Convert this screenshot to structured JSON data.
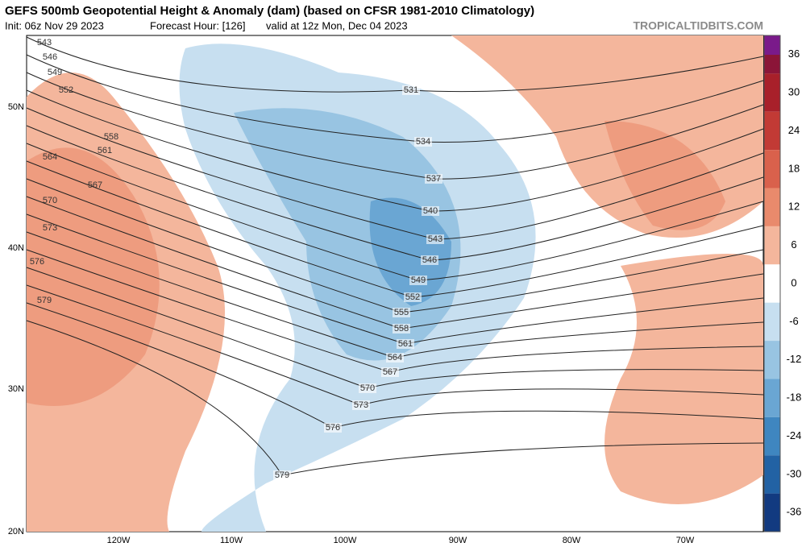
{
  "header": {
    "title": "GEFS 500mb Geopotential Height & Anomaly (dam) (based on CFSR 1981-2010 Climatology)",
    "init": "Init: 06z Nov 29 2023",
    "forecast_hour": "Forecast Hour: [126]",
    "valid": "valid at 12z Mon, Dec 04 2023",
    "source": "TROPICALTIDBITS.COM"
  },
  "map": {
    "lat_labels": [
      "50N",
      "40N",
      "30N",
      "20N"
    ],
    "lon_labels": [
      "120W",
      "110W",
      "100W",
      "90W",
      "80W",
      "70W"
    ],
    "west_contour_labels": [
      543,
      546,
      549,
      552,
      558,
      561,
      564,
      567,
      570,
      573,
      576,
      579
    ],
    "central_contour_labels": [
      531,
      534,
      537,
      540,
      543,
      546,
      549,
      552,
      555,
      558,
      561,
      564,
      567,
      570,
      573,
      576,
      579
    ]
  },
  "colorbar": {
    "ticks": [
      36,
      30,
      24,
      18,
      12,
      6,
      0,
      -6,
      -12,
      -18,
      -24,
      -30,
      -36
    ],
    "colors": [
      "#8b1538",
      "#a8202a",
      "#c23a35",
      "#d9614c",
      "#e98a6c",
      "#f4b69c",
      "#ffffff",
      "#c7dff0",
      "#98c4e2",
      "#6aa6d3",
      "#3f86c0",
      "#2262a4",
      "#123a80"
    ]
  }
}
